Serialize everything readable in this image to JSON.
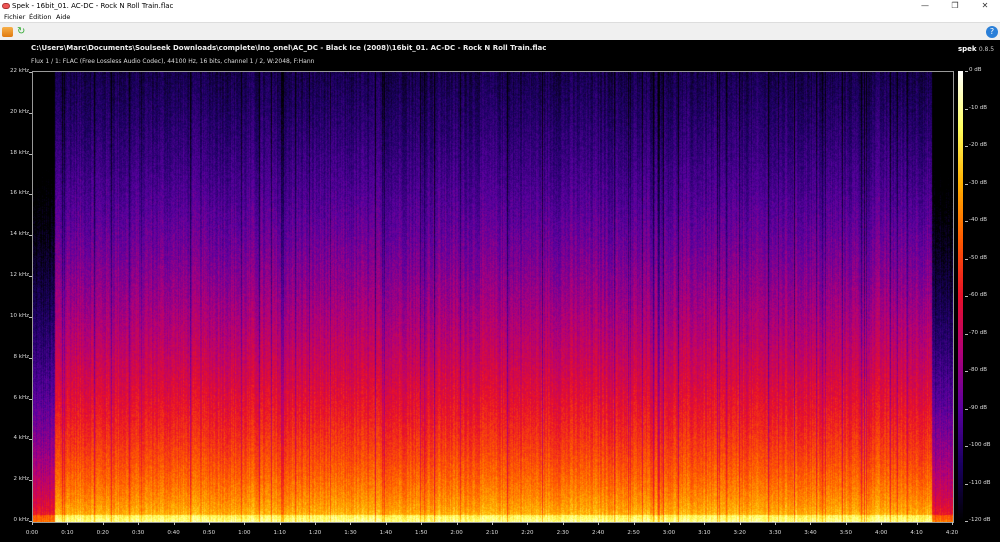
{
  "window": {
    "title": "Spek - 16bit_01. AC-DC - Rock N Roll Train.flac",
    "minimize": "—",
    "maximize": "❐",
    "close": "✕"
  },
  "menu": [
    "Fichier",
    "Édition",
    "Aide"
  ],
  "toolbar": {
    "open_icon": "folder-open-icon",
    "reload_icon": "reload-icon",
    "help": "?"
  },
  "header": {
    "path": "C:\\Users\\Marc\\Documents\\Soulseek Downloads\\complete\\lno_onel\\AC_DC - Black Ice (2008)\\16bit_01. AC-DC - Rock N Roll Train.flac",
    "info": "Flux 1 / 1: FLAC (Free Lossless Audio Codec), 44100 Hz, 16 bits, channel 1 / 2, W:2048, F:Hann",
    "brand": "spek",
    "version": "0.8.5"
  },
  "chart_data": {
    "type": "heatmap",
    "y_ticks": [
      "0 kHz",
      "2 kHz",
      "4 kHz",
      "6 kHz",
      "8 kHz",
      "10 kHz",
      "12 kHz",
      "14 kHz",
      "16 kHz",
      "18 kHz",
      "20 kHz",
      "22 kHz"
    ],
    "x_ticks": [
      "0:00",
      "0:10",
      "0:20",
      "0:30",
      "0:40",
      "0:50",
      "1:00",
      "1:10",
      "1:20",
      "1:30",
      "1:40",
      "1:50",
      "2:00",
      "2:10",
      "2:20",
      "2:30",
      "2:40",
      "2:50",
      "3:00",
      "3:10",
      "3:20",
      "3:30",
      "3:40",
      "3:50",
      "4:00",
      "4:10",
      "4:20"
    ],
    "db_ticks": [
      "0 dB",
      "-10 dB",
      "-20 dB",
      "-30 dB",
      "-40 dB",
      "-50 dB",
      "-60 dB",
      "-70 dB",
      "-80 dB",
      "-90 dB",
      "-100 dB",
      "-110 dB",
      "-120 dB"
    ],
    "ylim_khz": [
      0,
      22.05
    ],
    "xlim_s": [
      0,
      260
    ],
    "zlim_db": [
      -120,
      0
    ],
    "colormap": [
      "#000000",
      "#1a0060",
      "#5a00a0",
      "#b0007a",
      "#e8102a",
      "#ff5a00",
      "#ffb000",
      "#ffff60",
      "#ffffff"
    ]
  }
}
